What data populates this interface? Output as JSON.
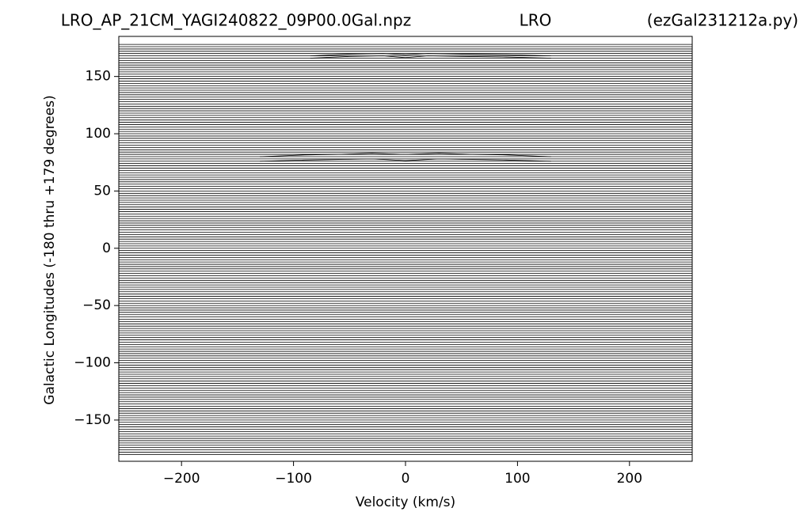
{
  "chart_data": {
    "type": "stacked_spectra",
    "title_left": "LRO_AP_21CM_YAGI240822_09P00.0Gal.npz",
    "title_center": "LRO",
    "title_right": "(ezGal231212a.py)",
    "xlabel": "Velocity (km/s)",
    "ylabel": "Galactic Longitudes   (-180 thru +179 degrees)",
    "color": "#000000",
    "xlim": [
      -256,
      256
    ],
    "ylim": [
      -186,
      185
    ],
    "xticks": [
      {
        "value": -200,
        "label": "−200"
      },
      {
        "value": -100,
        "label": "−100"
      },
      0,
      100,
      200
    ],
    "yticks": [
      {
        "value": -150,
        "label": "−150"
      },
      {
        "value": -100,
        "label": "−100"
      },
      {
        "value": -50,
        "label": "−50"
      },
      0,
      50,
      100,
      150
    ],
    "offsets": [
      -180,
      -178,
      -176,
      -174,
      -172,
      -170,
      -168,
      -166,
      -164,
      -162,
      -160,
      -158,
      -156,
      -154,
      -152,
      -150,
      -148,
      -146,
      -144,
      -142,
      -140,
      -138,
      -136,
      -134,
      -132,
      -130,
      -128,
      -126,
      -124,
      -122,
      -120,
      -118,
      -116,
      -114,
      -112,
      -110,
      -108,
      -106,
      -104,
      -102,
      -100,
      -98,
      -96,
      -94,
      -92,
      -90,
      -88,
      -86,
      -84,
      -82,
      -80,
      -78,
      -76,
      -74,
      -72,
      -70,
      -68,
      -66,
      -64,
      -62,
      -60,
      -58,
      -56,
      -54,
      -52,
      -50,
      -48,
      -46,
      -44,
      -42,
      -40,
      -38,
      -36,
      -34,
      -32,
      -30,
      -28,
      -26,
      -24,
      -22,
      -20,
      -18,
      -16,
      -14,
      -12,
      -10,
      -8,
      -6,
      -4,
      -2,
      0,
      2,
      4,
      6,
      8,
      10,
      12,
      14,
      16,
      18,
      20,
      22,
      24,
      26,
      28,
      30,
      32,
      34,
      36,
      38,
      40,
      42,
      44,
      46,
      48,
      50,
      52,
      54,
      56,
      58,
      60,
      62,
      64,
      66,
      68,
      70,
      72,
      74,
      76,
      78,
      80,
      82,
      84,
      86,
      88,
      90,
      92,
      94,
      96,
      98,
      100,
      102,
      104,
      106,
      108,
      110,
      112,
      114,
      116,
      118,
      120,
      122,
      124,
      126,
      128,
      130,
      132,
      134,
      136,
      138,
      140,
      142,
      144,
      146,
      148,
      150,
      152,
      154,
      156,
      158,
      160,
      162,
      164,
      166,
      168,
      170,
      172,
      174,
      176,
      178
    ],
    "traces": [
      {
        "x": [
          -130,
          -90,
          -60,
          -30,
          0,
          30,
          60,
          90,
          130
        ],
        "values": [
          76,
          77,
          77.5,
          78,
          76.5,
          78,
          77.5,
          77,
          76
        ]
      },
      {
        "x": [
          -130,
          -90,
          -60,
          -30,
          0,
          30,
          60,
          90,
          130
        ],
        "values": [
          80,
          81.5,
          82,
          83,
          82,
          83,
          82,
          81.5,
          80
        ]
      },
      {
        "x": [
          -85,
          -50,
          -20,
          0,
          20,
          50,
          90,
          130
        ],
        "values": [
          166,
          167.5,
          168,
          166.5,
          168,
          167.5,
          167,
          166
        ]
      },
      {
        "x": [
          -85,
          -50,
          -20,
          0,
          20,
          50,
          90,
          130
        ],
        "values": [
          168,
          169.5,
          170,
          169,
          170,
          169.5,
          169,
          168
        ]
      }
    ]
  }
}
